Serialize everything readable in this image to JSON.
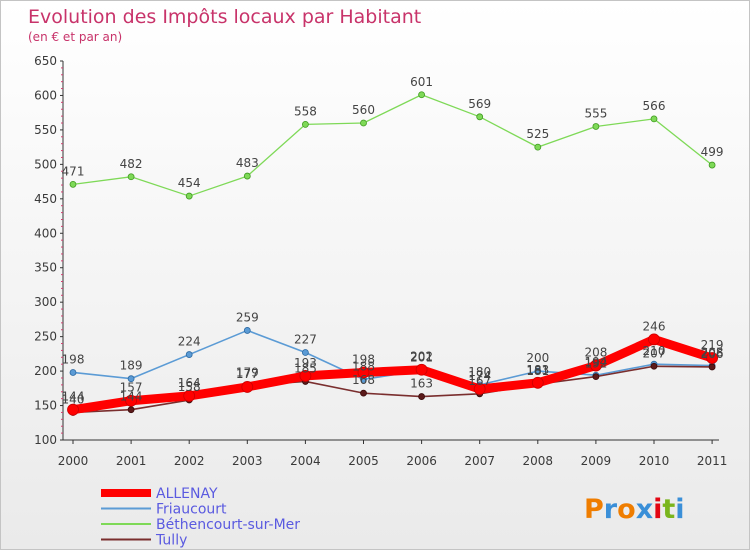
{
  "chart_data": {
    "type": "line",
    "title": "Evolution des Impôts locaux par Habitant",
    "subtitle": "(en € et par an)",
    "xlabel": "",
    "ylabel": "",
    "x": [
      "2000",
      "2001",
      "2002",
      "2003",
      "2004",
      "2005",
      "2006",
      "2007",
      "2008",
      "2009",
      "2010",
      "2011"
    ],
    "ylim": [
      100,
      650
    ],
    "yticks": [
      "100",
      "150",
      "200",
      "250",
      "300",
      "350",
      "400",
      "450",
      "500",
      "550",
      "600",
      "650"
    ],
    "grid": false,
    "legend_position": "bottom-left",
    "series": [
      {
        "name": "ALLENAY",
        "color": "#ff0000",
        "values": [
          144,
          157,
          164,
          177,
          193,
          198,
          202,
          174,
          183,
          208,
          246,
          219
        ],
        "labels": [
          "144",
          "157",
          "164",
          "177",
          "193",
          "198",
          "202",
          "174",
          "183",
          "208",
          "246",
          "219"
        ]
      },
      {
        "name": "Friaucourt",
        "color": "#5b9bd5",
        "values": [
          198,
          189,
          224,
          259,
          227,
          188,
          201,
          180,
          200,
          194,
          210,
          208
        ],
        "labels": [
          "198",
          "189",
          "224",
          "259",
          "227",
          "188",
          "201",
          "180",
          "200",
          "194",
          "210",
          "208"
        ]
      },
      {
        "name": "Béthencourt-sur-Mer",
        "color": "#7ed957",
        "values": [
          471,
          482,
          454,
          483,
          558,
          560,
          601,
          569,
          525,
          555,
          566,
          499
        ],
        "labels": [
          "471",
          "482",
          "454",
          "483",
          "558",
          "560",
          "601",
          "569",
          "525",
          "555",
          "566",
          "499"
        ]
      },
      {
        "name": "Tully",
        "color": "#7a2e2e",
        "values": [
          140,
          144,
          158,
          179,
          185,
          168,
          163,
          167,
          181,
          192,
          207,
          206
        ],
        "labels": [
          "140",
          "144",
          "158",
          "179",
          "185",
          "168",
          "163",
          "167",
          "181",
          "192",
          "207",
          "206"
        ]
      }
    ]
  },
  "branding": {
    "logo_text": "Proxiti",
    "logo_colors": [
      "#ef7d00",
      "#3a8fd8",
      "#ef7d00",
      "#3a8fd8",
      "#e30613",
      "#7ab51d",
      "#3a8fd8"
    ]
  }
}
